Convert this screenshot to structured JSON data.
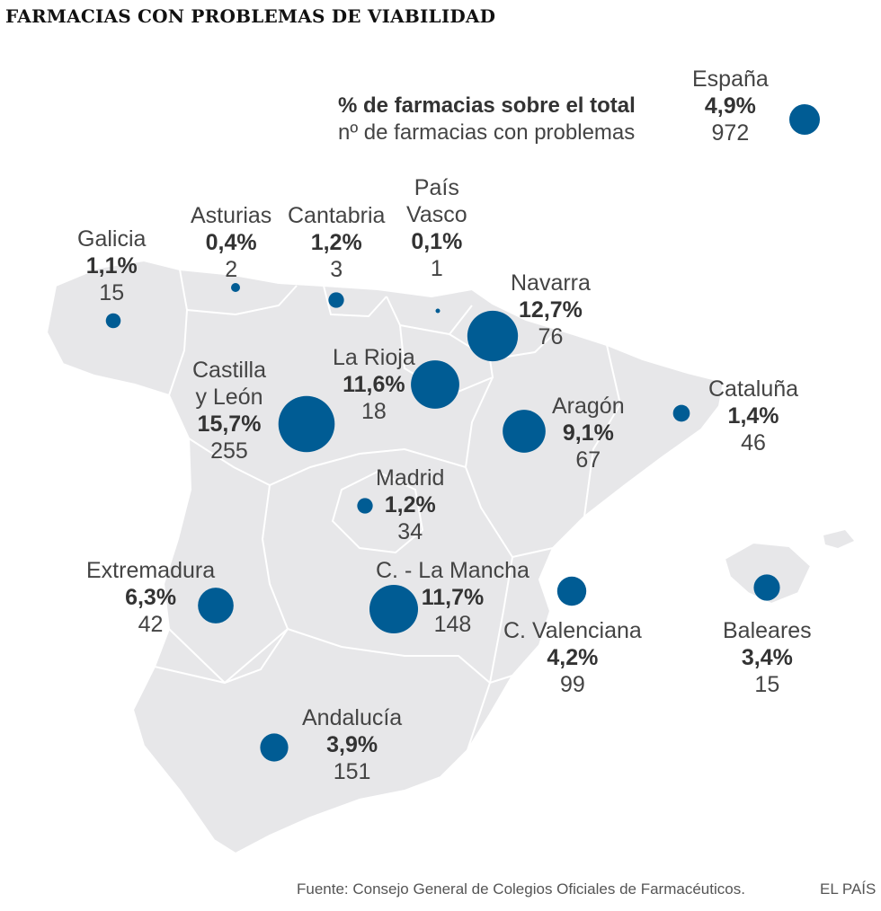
{
  "title": "FARMACIAS CON PROBLEMAS DE VIABILIDAD",
  "legend": {
    "pct_label": "% de farmacias sobre el total",
    "count_label": "nº de farmacias con problemas"
  },
  "colors": {
    "bubble": "#005c94",
    "land": "#e7e7e9",
    "border": "#ffffff"
  },
  "total": {
    "name": "España",
    "pct": "4,9%",
    "count": "972"
  },
  "regions": [
    {
      "id": "galicia",
      "name_lines": [
        "Galicia"
      ],
      "pct": "1,1%",
      "count": "15",
      "pct_value": 1.1
    },
    {
      "id": "asturias",
      "name_lines": [
        "Asturias"
      ],
      "pct": "0,4%",
      "count": "2",
      "pct_value": 0.4
    },
    {
      "id": "cantabria",
      "name_lines": [
        "Cantabria"
      ],
      "pct": "1,2%",
      "count": "3",
      "pct_value": 1.2
    },
    {
      "id": "pais-vasco",
      "name_lines": [
        "País",
        "Vasco"
      ],
      "pct": "0,1%",
      "count": "1",
      "pct_value": 0.1
    },
    {
      "id": "navarra",
      "name_lines": [
        "Navarra"
      ],
      "pct": "12,7%",
      "count": "76",
      "pct_value": 12.7
    },
    {
      "id": "la-rioja",
      "name_lines": [
        "La Rioja"
      ],
      "pct": "11,6%",
      "count": "18",
      "pct_value": 11.6
    },
    {
      "id": "castilla-leon",
      "name_lines": [
        "Castilla",
        "y León"
      ],
      "pct": "15,7%",
      "count": "255",
      "pct_value": 15.7
    },
    {
      "id": "aragon",
      "name_lines": [
        "Aragón"
      ],
      "pct": "9,1%",
      "count": "67",
      "pct_value": 9.1
    },
    {
      "id": "cataluna",
      "name_lines": [
        "Cataluña"
      ],
      "pct": "1,4%",
      "count": "46",
      "pct_value": 1.4
    },
    {
      "id": "madrid",
      "name_lines": [
        "Madrid"
      ],
      "pct": "1,2%",
      "count": "34",
      "pct_value": 1.2
    },
    {
      "id": "extremadura",
      "name_lines": [
        "Extremadura"
      ],
      "pct": "6,3%",
      "count": "42",
      "pct_value": 6.3
    },
    {
      "id": "castilla-la-mancha",
      "name_lines": [
        "C. - La Mancha"
      ],
      "pct": "11,7%",
      "count": "148",
      "pct_value": 11.7
    },
    {
      "id": "c-valenciana",
      "name_lines": [
        "C. Valenciana"
      ],
      "pct": "4,2%",
      "count": "99",
      "pct_value": 4.2
    },
    {
      "id": "baleares",
      "name_lines": [
        "Baleares"
      ],
      "pct": "3,4%",
      "count": "15",
      "pct_value": 3.4
    },
    {
      "id": "andalucia",
      "name_lines": [
        "Andalucía"
      ],
      "pct": "3,9%",
      "count": "151",
      "pct_value": 3.9
    }
  ],
  "source": "Fuente: Consejo General de Colegios Oficiales de Farmacéuticos.",
  "brand": "EL PAÍS"
}
